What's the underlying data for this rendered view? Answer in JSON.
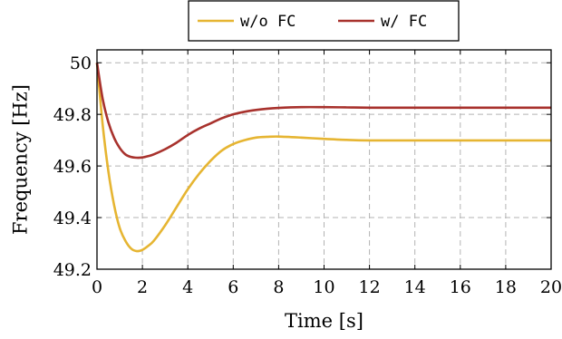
{
  "chart_data": {
    "type": "line",
    "xlabel": "Time [s]",
    "ylabel": "Frequency [Hz]",
    "xlim": [
      0,
      20
    ],
    "ylim": [
      49.2,
      50.05
    ],
    "x_ticks": [
      0,
      2,
      4,
      6,
      8,
      10,
      12,
      14,
      16,
      18,
      20
    ],
    "y_ticks": [
      49.2,
      49.4,
      49.6,
      49.8,
      50
    ],
    "y_tick_labels": [
      "49.2",
      "49.4",
      "49.6",
      "49.8",
      "50"
    ],
    "grid": true,
    "legend_position": "top-center",
    "series": [
      {
        "name": "w/o FC",
        "color": "#e6b532",
        "x": [
          0,
          0.25,
          0.5,
          0.75,
          1.0,
          1.25,
          1.5,
          1.75,
          2.0,
          2.25,
          2.5,
          3.0,
          3.5,
          4.0,
          4.5,
          5.0,
          5.5,
          6.0,
          6.5,
          7.0,
          7.5,
          8.0,
          9.0,
          10.0,
          11.0,
          12.0,
          14.0,
          16.0,
          18.0,
          20.0
        ],
        "y": [
          50.0,
          49.76,
          49.58,
          49.45,
          49.36,
          49.31,
          49.28,
          49.27,
          49.275,
          49.29,
          49.31,
          49.37,
          49.44,
          49.51,
          49.57,
          49.62,
          49.66,
          49.685,
          49.7,
          49.71,
          49.713,
          49.714,
          49.71,
          49.705,
          49.701,
          49.699,
          49.699,
          49.699,
          49.699,
          49.699
        ]
      },
      {
        "name": "w/ FC",
        "color": "#a8322d",
        "x": [
          0,
          0.25,
          0.5,
          0.75,
          1.0,
          1.25,
          1.5,
          1.75,
          2.0,
          2.25,
          2.5,
          3.0,
          3.5,
          4.0,
          4.5,
          5.0,
          5.5,
          6.0,
          6.5,
          7.0,
          7.5,
          8.0,
          9.0,
          10.0,
          11.0,
          12.0,
          14.0,
          16.0,
          18.0,
          20.0
        ],
        "y": [
          50.0,
          49.86,
          49.77,
          49.71,
          49.67,
          49.645,
          49.635,
          49.632,
          49.633,
          49.638,
          49.645,
          49.665,
          49.69,
          49.72,
          49.745,
          49.765,
          49.785,
          49.8,
          49.81,
          49.817,
          49.822,
          49.825,
          49.828,
          49.828,
          49.827,
          49.826,
          49.826,
          49.826,
          49.826,
          49.826
        ]
      }
    ]
  }
}
